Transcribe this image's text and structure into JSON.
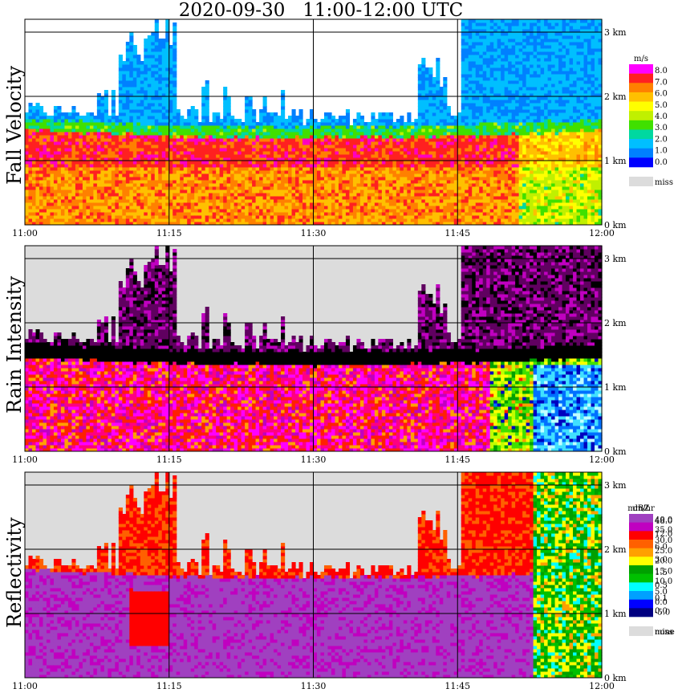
{
  "title": "2020-09-30   11:00-12:00 UTC",
  "time_ticks": [
    "11:00",
    "11:15",
    "11:30",
    "11:45",
    "12:00"
  ],
  "height_ticks": [
    "0 km",
    "1 km",
    "2 km",
    "3 km"
  ],
  "colors": {
    "fall_velocity": [
      "#0000ff",
      "#0080ff",
      "#00bfff",
      "#00d8a0",
      "#40e000",
      "#c0f000",
      "#ffff00",
      "#ffc000",
      "#ff8000",
      "#ff2020",
      "#ff00c0",
      "#ff00ff"
    ],
    "rain_intensity": [
      "#c0ffff",
      "#40e0ff",
      "#0070ff",
      "#0000c0",
      "#00a000",
      "#40e000",
      "#c0ff00",
      "#ffff00",
      "#ffa000",
      "#ff2000",
      "#ff0080",
      "#ff00ff",
      "#c000c0",
      "#600060",
      "#000000"
    ],
    "reflectivity": [
      "#000080",
      "#0000ff",
      "#00a0ff",
      "#00ffff",
      "#00c000",
      "#00a000",
      "#ffff00",
      "#ffa000",
      "#ff6000",
      "#ff0000",
      "#c000c0",
      "#a040c0"
    ],
    "missing": "#dcdcdc"
  },
  "chart_data": [
    {
      "type": "heatmap",
      "panel": "fall-velocity",
      "ylabel": "Fall Velocity",
      "unit": "m/s",
      "x_range": [
        "11:00",
        "12:00"
      ],
      "ylim": [
        0,
        3.2
      ],
      "legend_labels": [
        "8.0",
        "7.0",
        "6.0",
        "5.0",
        "4.0",
        "3.0",
        "2.0",
        "1.0",
        "0.0"
      ],
      "legend_missing_label": "miss",
      "layers": [
        {
          "range_km": [
            0,
            0.9
          ],
          "value_ms": 5.8
        },
        {
          "range_km": [
            0.9,
            1.4
          ],
          "value_ms": 7.0
        },
        {
          "range_km": [
            1.4,
            1.6
          ],
          "value_ms": 4.0
        },
        {
          "range_km": [
            1.6,
            1.9
          ],
          "value_ms": 2.0
        },
        {
          "range_km": [
            1.9,
            3.2
          ],
          "value_ms": 1.0
        }
      ]
    },
    {
      "type": "heatmap",
      "panel": "rain-intensity",
      "ylabel": "Rain Intensity",
      "unit": "mm/hr",
      "x_range": [
        "11:00",
        "12:00"
      ],
      "ylim": [
        0,
        3.2
      ],
      "legend_labels": [
        "48.0",
        "12.0",
        "6.0",
        "3.0",
        "1.5",
        "0.5",
        "0.1",
        "0.0"
      ],
      "legend_missing_label": "miss",
      "layers": [
        {
          "range_km": [
            0,
            1.3
          ],
          "value_mmhr": 6.0
        },
        {
          "range_km": [
            1.3,
            1.6
          ],
          "value_mmhr": 48.0
        },
        {
          "range_km": [
            1.6,
            2.2
          ],
          "value_mmhr": 12.0
        }
      ]
    },
    {
      "type": "heatmap",
      "panel": "reflectivity",
      "ylabel": "Reflectivity",
      "unit": "dBZ",
      "x_range": [
        "11:00",
        "12:00"
      ],
      "ylim": [
        0,
        3.2
      ],
      "legend_labels": [
        "40.0",
        "35.0",
        "30.0",
        "25.0",
        "20.0",
        "15.0",
        "10.0",
        "5.0",
        "0.0",
        "-5.0"
      ],
      "legend_missing_label": "none",
      "layers": [
        {
          "range_km": [
            0,
            1.6
          ],
          "value_dbz": 37.0
        },
        {
          "range_km": [
            1.6,
            2.2
          ],
          "value_dbz": 30.0
        }
      ]
    }
  ]
}
